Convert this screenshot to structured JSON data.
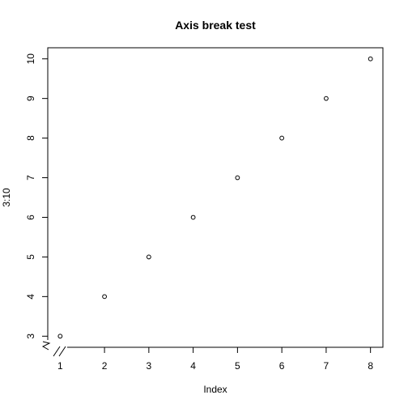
{
  "chart_data": {
    "type": "scatter",
    "title": "Axis break test",
    "xlabel": "Index",
    "ylabel": "3:10",
    "x": [
      1,
      2,
      3,
      4,
      5,
      6,
      7,
      8
    ],
    "y": [
      3,
      4,
      5,
      6,
      7,
      8,
      9,
      10
    ],
    "xticks": [
      1,
      2,
      3,
      4,
      5,
      6,
      7,
      8
    ],
    "yticks": [
      3,
      4,
      5,
      6,
      7,
      8,
      9,
      10
    ],
    "xlim": [
      0.72,
      8.28
    ],
    "ylim": [
      2.72,
      10.28
    ],
    "grid": false,
    "axis_break": "y-axis, bottom left",
    "marker": "open circle"
  }
}
